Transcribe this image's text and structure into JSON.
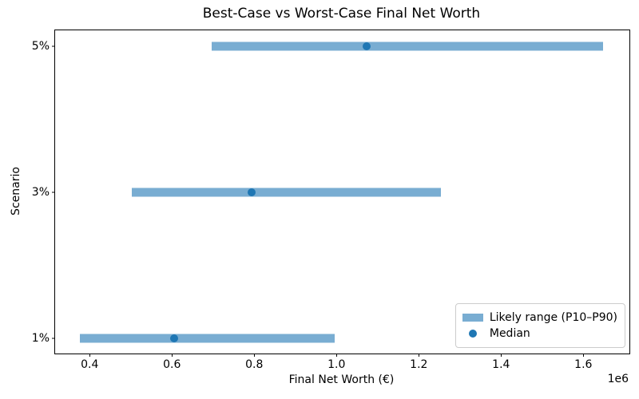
{
  "figure": {
    "kind": "matplotlib-style static chart"
  },
  "colors": {
    "range_bar": "#79add2",
    "median_dot": "#1f77b4",
    "spine": "#000000",
    "text": "#000000",
    "legend_border": "#cccccc",
    "background": "#ffffff"
  },
  "chart_data": {
    "type": "bar",
    "orientation": "horizontal",
    "subtype": "range-bars-with-median-points",
    "title": "Best-Case vs Worst-Case Final Net Worth",
    "xlabel": "Final Net Worth (€)",
    "ylabel": "Scenario",
    "offset_label": "1e6",
    "grid": false,
    "legend_position": "lower right",
    "xlim": [
      316000,
      1712000
    ],
    "ylim": [
      -0.103,
      2.109
    ],
    "categories": [
      "1%",
      "3%",
      "5%"
    ],
    "x_ticks": [
      {
        "value": 400000,
        "label": "0.4"
      },
      {
        "value": 600000,
        "label": "0.6"
      },
      {
        "value": 800000,
        "label": "0.8"
      },
      {
        "value": 1000000,
        "label": "1.0"
      },
      {
        "value": 1200000,
        "label": "1.2"
      },
      {
        "value": 1400000,
        "label": "1.4"
      },
      {
        "value": 1600000,
        "label": "1.6"
      }
    ],
    "series": [
      {
        "name": "Likely range (P10–P90)",
        "role": "range",
        "p10": [
          376000,
          503000,
          697000
        ],
        "p90": [
          996000,
          1254000,
          1647000
        ]
      },
      {
        "name": "Median",
        "role": "point",
        "values": [
          605000,
          793000,
          1073000
        ]
      }
    ]
  }
}
